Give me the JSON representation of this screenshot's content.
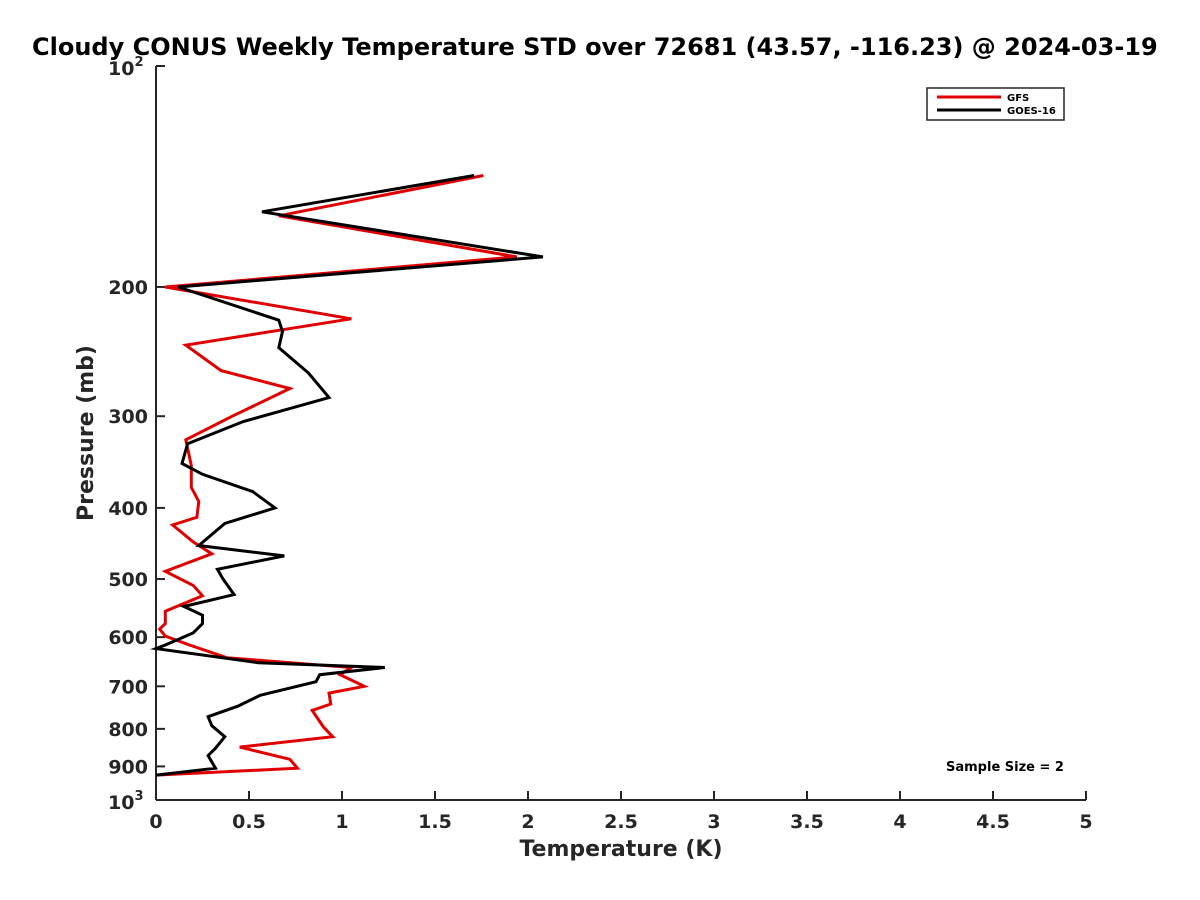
{
  "chart_data": {
    "type": "line",
    "title": "Cloudy CONUS Weekly Temperature STD over 72681 (43.57, -116.23) @ 2024-03-19",
    "xlabel": "Temperature (K)",
    "ylabel": "Pressure (mb)",
    "xlim": [
      0,
      5
    ],
    "ylim": [
      100,
      1000
    ],
    "y_scale": "log",
    "y_reversed": true,
    "grid": false,
    "legend_position": "top-right",
    "x_ticks": [
      "0",
      "0.5",
      "1",
      "1.5",
      "2",
      "2.5",
      "3",
      "3.5",
      "4",
      "4.5",
      "5"
    ],
    "x_tick_values": [
      0,
      0.5,
      1,
      1.5,
      2,
      2.5,
      3,
      3.5,
      4,
      4.5,
      5
    ],
    "y_ticks": [
      {
        "value": 100,
        "base": "10",
        "exp": "2"
      },
      {
        "value": 200,
        "label": "200"
      },
      {
        "value": 300,
        "label": "300"
      },
      {
        "value": 400,
        "label": "400"
      },
      {
        "value": 500,
        "label": "500"
      },
      {
        "value": 600,
        "label": "600"
      },
      {
        "value": 700,
        "label": "700"
      },
      {
        "value": 800,
        "label": "800"
      },
      {
        "value": 900,
        "label": "900"
      },
      {
        "value": 1000,
        "base": "10",
        "exp": "3"
      }
    ],
    "annotation": "Sample Size = 2",
    "series": [
      {
        "name": "GFS",
        "color": "#e00000",
        "points": [
          [
            1.76,
            141
          ],
          [
            0.66,
            160
          ],
          [
            1.94,
            182
          ],
          [
            0.05,
            200
          ],
          [
            1.05,
            221
          ],
          [
            0.16,
            240
          ],
          [
            0.35,
            260
          ],
          [
            0.72,
            275
          ],
          [
            0.41,
            300
          ],
          [
            0.16,
            323
          ],
          [
            0.19,
            350
          ],
          [
            0.19,
            375
          ],
          [
            0.23,
            392
          ],
          [
            0.22,
            412
          ],
          [
            0.09,
            422
          ],
          [
            0.2,
            445
          ],
          [
            0.3,
            462
          ],
          [
            0.05,
            488
          ],
          [
            0.2,
            510
          ],
          [
            0.25,
            527
          ],
          [
            0.05,
            553
          ],
          [
            0.05,
            575
          ],
          [
            0.02,
            585
          ],
          [
            0.05,
            598
          ],
          [
            0.18,
            615
          ],
          [
            0.38,
            640
          ],
          [
            1.05,
            660
          ],
          [
            0.99,
            675
          ],
          [
            1.12,
            700
          ],
          [
            0.93,
            715
          ],
          [
            0.94,
            740
          ],
          [
            0.84,
            755
          ],
          [
            0.9,
            795
          ],
          [
            0.95,
            820
          ],
          [
            0.45,
            847
          ],
          [
            0.72,
            880
          ],
          [
            0.76,
            905
          ],
          [
            0.0,
            925
          ]
        ]
      },
      {
        "name": "GOES-16",
        "color": "#000000",
        "points": [
          [
            1.71,
            141
          ],
          [
            0.57,
            158
          ],
          [
            2.08,
            182
          ],
          [
            0.12,
            200
          ],
          [
            0.66,
            222
          ],
          [
            0.68,
            230
          ],
          [
            0.66,
            242
          ],
          [
            0.82,
            262
          ],
          [
            0.93,
            283
          ],
          [
            0.47,
            305
          ],
          [
            0.17,
            327
          ],
          [
            0.14,
            348
          ],
          [
            0.25,
            360
          ],
          [
            0.52,
            380
          ],
          [
            0.64,
            400
          ],
          [
            0.37,
            420
          ],
          [
            0.23,
            450
          ],
          [
            0.69,
            465
          ],
          [
            0.33,
            485
          ],
          [
            0.36,
            500
          ],
          [
            0.42,
            525
          ],
          [
            0.15,
            545
          ],
          [
            0.25,
            560
          ],
          [
            0.25,
            575
          ],
          [
            0.2,
            592
          ],
          [
            0.05,
            615
          ],
          [
            0.0,
            622
          ],
          [
            0.55,
            650
          ],
          [
            1.23,
            660
          ],
          [
            0.88,
            675
          ],
          [
            0.86,
            690
          ],
          [
            0.56,
            720
          ],
          [
            0.44,
            745
          ],
          [
            0.28,
            770
          ],
          [
            0.3,
            792
          ],
          [
            0.37,
            820
          ],
          [
            0.32,
            850
          ],
          [
            0.28,
            870
          ],
          [
            0.32,
            905
          ],
          [
            0.0,
            925
          ]
        ]
      }
    ]
  }
}
